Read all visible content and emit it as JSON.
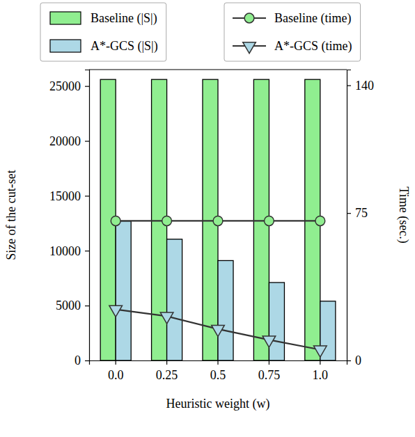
{
  "chart_data": {
    "type": "bar",
    "x_label": "Heuristic weight (w)",
    "y_label": "Size of the cut-set",
    "y2_label": "Time (sec.)",
    "categories": [
      "0.0",
      "0.25",
      "0.5",
      "0.75",
      "1.0"
    ],
    "series": [
      {
        "name": "Baseline (|S|)",
        "type": "bar",
        "color": "#90ee90",
        "values": [
          25600,
          25600,
          25600,
          25600,
          25600
        ]
      },
      {
        "name": "A*-GCS (|S|)",
        "type": "bar",
        "color": "#add8e6",
        "values": [
          12700,
          11050,
          9100,
          7100,
          5400
        ]
      },
      {
        "name": "Baseline (time)",
        "type": "line",
        "axis": "y2",
        "color": "#333333",
        "marker": "circle",
        "values": [
          71,
          71,
          71,
          71,
          71
        ]
      },
      {
        "name": "A*-GCS (time)",
        "type": "line",
        "axis": "y2",
        "color": "#333333",
        "marker": "triangle-down",
        "values": [
          26,
          22.5,
          16,
          10.5,
          5.5
        ]
      }
    ],
    "ylim": [
      0,
      26500
    ],
    "yticks": [
      0,
      5000,
      10000,
      15000,
      20000,
      25000
    ],
    "y2lim": [
      0,
      148
    ],
    "y2ticks": [
      0,
      75,
      140
    ],
    "grid": false,
    "legend": "top"
  }
}
